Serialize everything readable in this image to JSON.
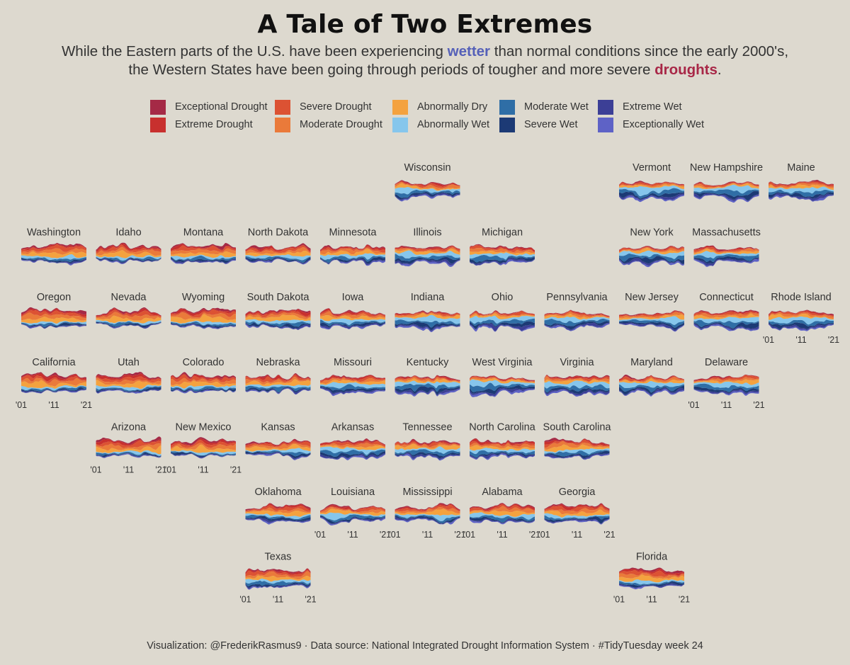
{
  "title": "A Tale of Two Extremes",
  "subtitle": {
    "line1_before": "While the Eastern parts of the U.S. have been experiencing ",
    "line1_highlight": "wetter",
    "line1_after": " than normal conditions since the early 2000's,",
    "line2_before": "the Western States have been going through periods of tougher and more severe ",
    "line2_highlight": "droughts",
    "line2_after": ".",
    "wet_color": "#5560b8",
    "dry_color": "#a82747"
  },
  "caption": "Visualization: @FrederikRasmus9 · Data source: National Integrated Drought Information System · #TidyTuesday week 24",
  "legend": [
    {
      "label": "Exceptional Drought",
      "color": "#a52a46"
    },
    {
      "label": "Extreme Drought",
      "color": "#c8302e"
    },
    {
      "label": "Severe Drought",
      "color": "#dc5233"
    },
    {
      "label": "Moderate Drought",
      "color": "#ea7a3a"
    },
    {
      "label": "Abnormally Dry",
      "color": "#f4a23f"
    },
    {
      "label": "Abnormally Wet",
      "color": "#86c6ec"
    },
    {
      "label": "Moderate Wet",
      "color": "#2f6ea6"
    },
    {
      "label": "Severe Wet",
      "color": "#1c3a75"
    },
    {
      "label": "Extreme Wet",
      "color": "#3c3f96"
    },
    {
      "label": "Exceptionally Wet",
      "color": "#5e62c6"
    }
  ],
  "chart_data": {
    "type": "area",
    "title": "A Tale of Two Extremes",
    "x_ticks": [
      "'01",
      "'11",
      "'21"
    ],
    "x_range": [
      2001,
      2021
    ],
    "series_order": [
      "Exceptional Drought",
      "Extreme Drought",
      "Severe Drought",
      "Moderate Drought",
      "Abnormally Dry",
      "Abnormally Wet",
      "Moderate Wet",
      "Severe Wet",
      "Extreme Wet",
      "Exceptionally Wet"
    ],
    "facets": [
      {
        "state": "Wisconsin",
        "row": 0,
        "col": 5,
        "dry": 0.5,
        "wet": 0.8,
        "ticks": false
      },
      {
        "state": "Vermont",
        "row": 0,
        "col": 8,
        "dry": 0.3,
        "wet": 1.0,
        "ticks": false
      },
      {
        "state": "New Hampshire",
        "row": 0,
        "col": 9,
        "dry": 0.35,
        "wet": 1.0,
        "ticks": false
      },
      {
        "state": "Maine",
        "row": 0,
        "col": 10,
        "dry": 0.45,
        "wet": 0.9,
        "ticks": false
      },
      {
        "state": "Washington",
        "row": 1,
        "col": 0,
        "dry": 0.85,
        "wet": 0.45,
        "ticks": false
      },
      {
        "state": "Idaho",
        "row": 1,
        "col": 1,
        "dry": 0.85,
        "wet": 0.4,
        "ticks": false
      },
      {
        "state": "Montana",
        "row": 1,
        "col": 2,
        "dry": 0.8,
        "wet": 0.45,
        "ticks": false
      },
      {
        "state": "North Dakota",
        "row": 1,
        "col": 3,
        "dry": 0.75,
        "wet": 0.55,
        "ticks": false
      },
      {
        "state": "Minnesota",
        "row": 1,
        "col": 4,
        "dry": 0.6,
        "wet": 0.6,
        "ticks": false
      },
      {
        "state": "Illinois",
        "row": 1,
        "col": 5,
        "dry": 0.45,
        "wet": 0.85,
        "ticks": false
      },
      {
        "state": "Michigan",
        "row": 1,
        "col": 6,
        "dry": 0.55,
        "wet": 0.75,
        "ticks": false
      },
      {
        "state": "New York",
        "row": 1,
        "col": 8,
        "dry": 0.35,
        "wet": 0.9,
        "ticks": false
      },
      {
        "state": "Massachusetts",
        "row": 1,
        "col": 9,
        "dry": 0.45,
        "wet": 0.85,
        "ticks": false
      },
      {
        "state": "Oregon",
        "row": 2,
        "col": 0,
        "dry": 0.95,
        "wet": 0.4,
        "ticks": false
      },
      {
        "state": "Nevada",
        "row": 2,
        "col": 1,
        "dry": 0.95,
        "wet": 0.4,
        "ticks": false
      },
      {
        "state": "Wyoming",
        "row": 2,
        "col": 2,
        "dry": 0.9,
        "wet": 0.4,
        "ticks": false
      },
      {
        "state": "South Dakota",
        "row": 2,
        "col": 3,
        "dry": 0.7,
        "wet": 0.55,
        "ticks": false
      },
      {
        "state": "Iowa",
        "row": 2,
        "col": 4,
        "dry": 0.6,
        "wet": 0.7,
        "ticks": false
      },
      {
        "state": "Indiana",
        "row": 2,
        "col": 5,
        "dry": 0.4,
        "wet": 0.9,
        "ticks": false
      },
      {
        "state": "Ohio",
        "row": 2,
        "col": 6,
        "dry": 0.35,
        "wet": 0.95,
        "ticks": false
      },
      {
        "state": "Pennsylvania",
        "row": 2,
        "col": 7,
        "dry": 0.35,
        "wet": 0.95,
        "ticks": false
      },
      {
        "state": "New Jersey",
        "row": 2,
        "col": 8,
        "dry": 0.5,
        "wet": 0.85,
        "ticks": false
      },
      {
        "state": "Connecticut",
        "row": 2,
        "col": 9,
        "dry": 0.5,
        "wet": 0.8,
        "ticks": false
      },
      {
        "state": "Rhode Island",
        "row": 2,
        "col": 10,
        "dry": 0.45,
        "wet": 0.8,
        "ticks": true
      },
      {
        "state": "California",
        "row": 3,
        "col": 0,
        "dry": 1.0,
        "wet": 0.45,
        "ticks": true
      },
      {
        "state": "Utah",
        "row": 3,
        "col": 1,
        "dry": 0.95,
        "wet": 0.5,
        "ticks": false
      },
      {
        "state": "Colorado",
        "row": 3,
        "col": 2,
        "dry": 0.85,
        "wet": 0.45,
        "ticks": false
      },
      {
        "state": "Nebraska",
        "row": 3,
        "col": 3,
        "dry": 0.7,
        "wet": 0.6,
        "ticks": false
      },
      {
        "state": "Missouri",
        "row": 3,
        "col": 4,
        "dry": 0.55,
        "wet": 0.7,
        "ticks": false
      },
      {
        "state": "Kentucky",
        "row": 3,
        "col": 5,
        "dry": 0.4,
        "wet": 0.9,
        "ticks": false
      },
      {
        "state": "West Virginia",
        "row": 3,
        "col": 6,
        "dry": 0.3,
        "wet": 1.0,
        "ticks": false
      },
      {
        "state": "Virginia",
        "row": 3,
        "col": 7,
        "dry": 0.45,
        "wet": 0.9,
        "ticks": false
      },
      {
        "state": "Maryland",
        "row": 3,
        "col": 8,
        "dry": 0.4,
        "wet": 0.95,
        "ticks": false
      },
      {
        "state": "Delaware",
        "row": 3,
        "col": 9,
        "dry": 0.45,
        "wet": 0.85,
        "ticks": true
      },
      {
        "state": "Arizona",
        "row": 4,
        "col": 1,
        "dry": 0.9,
        "wet": 0.35,
        "ticks": true
      },
      {
        "state": "New Mexico",
        "row": 4,
        "col": 2,
        "dry": 0.9,
        "wet": 0.35,
        "ticks": true
      },
      {
        "state": "Kansas",
        "row": 4,
        "col": 3,
        "dry": 0.7,
        "wet": 0.55,
        "ticks": false
      },
      {
        "state": "Arkansas",
        "row": 4,
        "col": 4,
        "dry": 0.55,
        "wet": 0.85,
        "ticks": false
      },
      {
        "state": "Tennessee",
        "row": 4,
        "col": 5,
        "dry": 0.6,
        "wet": 0.9,
        "ticks": false
      },
      {
        "state": "North Carolina",
        "row": 4,
        "col": 6,
        "dry": 0.65,
        "wet": 0.6,
        "ticks": false
      },
      {
        "state": "South Carolina",
        "row": 4,
        "col": 7,
        "dry": 0.65,
        "wet": 0.6,
        "ticks": false
      },
      {
        "state": "Oklahoma",
        "row": 5,
        "col": 3,
        "dry": 0.65,
        "wet": 0.6,
        "ticks": false
      },
      {
        "state": "Louisiana",
        "row": 5,
        "col": 4,
        "dry": 0.55,
        "wet": 0.55,
        "ticks": true
      },
      {
        "state": "Mississippi",
        "row": 5,
        "col": 5,
        "dry": 0.55,
        "wet": 0.55,
        "ticks": true
      },
      {
        "state": "Alabama",
        "row": 5,
        "col": 6,
        "dry": 0.6,
        "wet": 0.55,
        "ticks": true
      },
      {
        "state": "Georgia",
        "row": 5,
        "col": 7,
        "dry": 0.65,
        "wet": 0.5,
        "ticks": true
      },
      {
        "state": "Texas",
        "row": 6,
        "col": 3,
        "dry": 0.8,
        "wet": 0.6,
        "ticks": true
      },
      {
        "state": "Florida",
        "row": 6,
        "col": 8,
        "dry": 0.55,
        "wet": 0.35,
        "ticks": true
      }
    ]
  }
}
